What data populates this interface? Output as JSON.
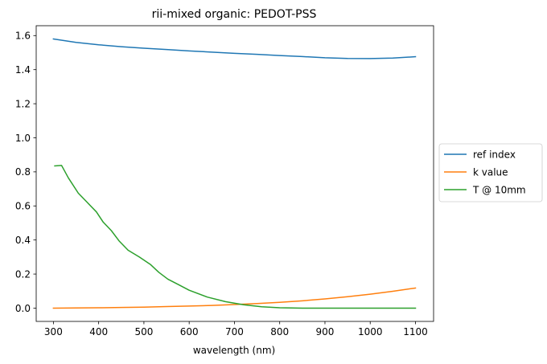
{
  "chart_data": {
    "type": "line",
    "title": "rii-mixed organic: PEDOT-PSS",
    "xlabel": "wavelength (nm)",
    "ylabel": "",
    "xlim": [
      262,
      1140
    ],
    "ylim": [
      -0.078,
      1.658
    ],
    "xticks": [
      300,
      400,
      500,
      600,
      700,
      800,
      900,
      1000,
      1100
    ],
    "yticks": [
      0.0,
      0.2,
      0.4,
      0.6,
      0.8,
      1.0,
      1.2,
      1.4,
      1.6
    ],
    "ytick_labels": [
      "0.0",
      "0.2",
      "0.4",
      "0.6",
      "0.8",
      "1.0",
      "1.2",
      "1.4",
      "1.6"
    ],
    "grid": false,
    "legend": "outside-right",
    "series": [
      {
        "name": "ref index",
        "color": "#1f77b4",
        "x": [
          300,
          350,
          400,
          450,
          500,
          550,
          600,
          650,
          700,
          750,
          800,
          850,
          900,
          950,
          1000,
          1050,
          1100
        ],
        "y": [
          1.58,
          1.56,
          1.546,
          1.535,
          1.526,
          1.518,
          1.51,
          1.503,
          1.496,
          1.49,
          1.483,
          1.477,
          1.47,
          1.466,
          1.465,
          1.468,
          1.476
        ]
      },
      {
        "name": "k value",
        "color": "#ff7f0e",
        "x": [
          300,
          350,
          400,
          450,
          500,
          550,
          600,
          650,
          700,
          750,
          800,
          850,
          900,
          950,
          1000,
          1050,
          1100
        ],
        "y": [
          0.0,
          0.001,
          0.002,
          0.004,
          0.006,
          0.009,
          0.012,
          0.016,
          0.021,
          0.027,
          0.034,
          0.043,
          0.054,
          0.067,
          0.082,
          0.099,
          0.118
        ]
      },
      {
        "name": "T @ 10mm",
        "color": "#2ca02c",
        "x": [
          303,
          318,
          333,
          355,
          375,
          395,
          410,
          428,
          445,
          465,
          490,
          515,
          533,
          553,
          575,
          600,
          640,
          680,
          720,
          760,
          800,
          850,
          900,
          1000,
          1100
        ],
        "y": [
          0.835,
          0.838,
          0.765,
          0.675,
          0.62,
          0.565,
          0.505,
          0.455,
          0.395,
          0.34,
          0.3,
          0.255,
          0.21,
          0.17,
          0.14,
          0.105,
          0.065,
          0.038,
          0.02,
          0.008,
          0.002,
          0.0,
          0.0,
          0.0,
          0.0
        ]
      }
    ]
  }
}
